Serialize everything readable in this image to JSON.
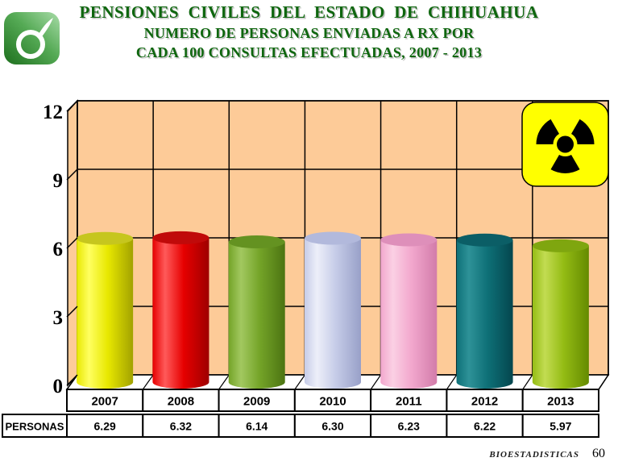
{
  "header": {
    "title": "PENSIONES  CIVILES  DEL  ESTADO  DE  CHIHUAHUA",
    "subtitle_line1": "NUMERO DE PERSONAS ENVIADAS A RX POR",
    "subtitle_line2": "CADA 100 CONSULTAS EFECTUADAS, 2007 - 2013",
    "title_color": "#0E660E",
    "logo": "pensiones-civiles-green-logo"
  },
  "footer": {
    "source": "BIOESTADISTICAS",
    "page_number": "60"
  },
  "chart_data": {
    "type": "bar",
    "style": "3d-cylinder",
    "title": "NUMERO DE PERSONAS ENVIADAS A RX POR CADA 100 CONSULTAS EFECTUADAS, 2007 - 2013",
    "categories": [
      "2007",
      "2008",
      "2009",
      "2010",
      "2011",
      "2012",
      "2013"
    ],
    "series": [
      {
        "name": "PERSONAS",
        "values": [
          6.29,
          6.32,
          6.14,
          6.3,
          6.23,
          6.22,
          5.97
        ]
      }
    ],
    "display_values": [
      "6.29",
      "6.32",
      "6.14",
      "6.30",
      "6.23",
      "6.22",
      "5.97"
    ],
    "row_label": "PERSONAS",
    "xlabel": "",
    "ylabel": "",
    "ylim": [
      0,
      12
    ],
    "yticks": [
      0,
      3,
      6,
      9,
      12
    ],
    "grid": true,
    "legend_position": "none",
    "wall_color": "#FDCB98",
    "floor_color": "#FFFFFF",
    "gridline_color": "#000000",
    "annotation_icon": "radiation-warning-symbol",
    "annotation_icon_colors": {
      "background": "#FFFF00",
      "glyph": "#000000"
    },
    "bar_colors": [
      {
        "light": "#FFFF60",
        "mid": "#E8E800",
        "dark": "#A2A200",
        "top": "#C6C61E"
      },
      {
        "light": "#FF5A5A",
        "mid": "#E60000",
        "dark": "#9E0000",
        "top": "#C00A0A"
      },
      {
        "light": "#A2C860",
        "mid": "#74A428",
        "dark": "#4C7412",
        "top": "#649221"
      },
      {
        "light": "#EDEFF9",
        "mid": "#C6CCE8",
        "dark": "#98A0C8",
        "top": "#B2B9DC"
      },
      {
        "light": "#FBD0E4",
        "mid": "#F2A7CD",
        "dark": "#D27CAA",
        "top": "#DE8FBA"
      },
      {
        "light": "#2E9298",
        "mid": "#0E7077",
        "dark": "#04464E",
        "top": "#0B5E66"
      },
      {
        "light": "#C2DC52",
        "mid": "#94BC14",
        "dark": "#648A00",
        "top": "#7FA60F"
      }
    ]
  }
}
